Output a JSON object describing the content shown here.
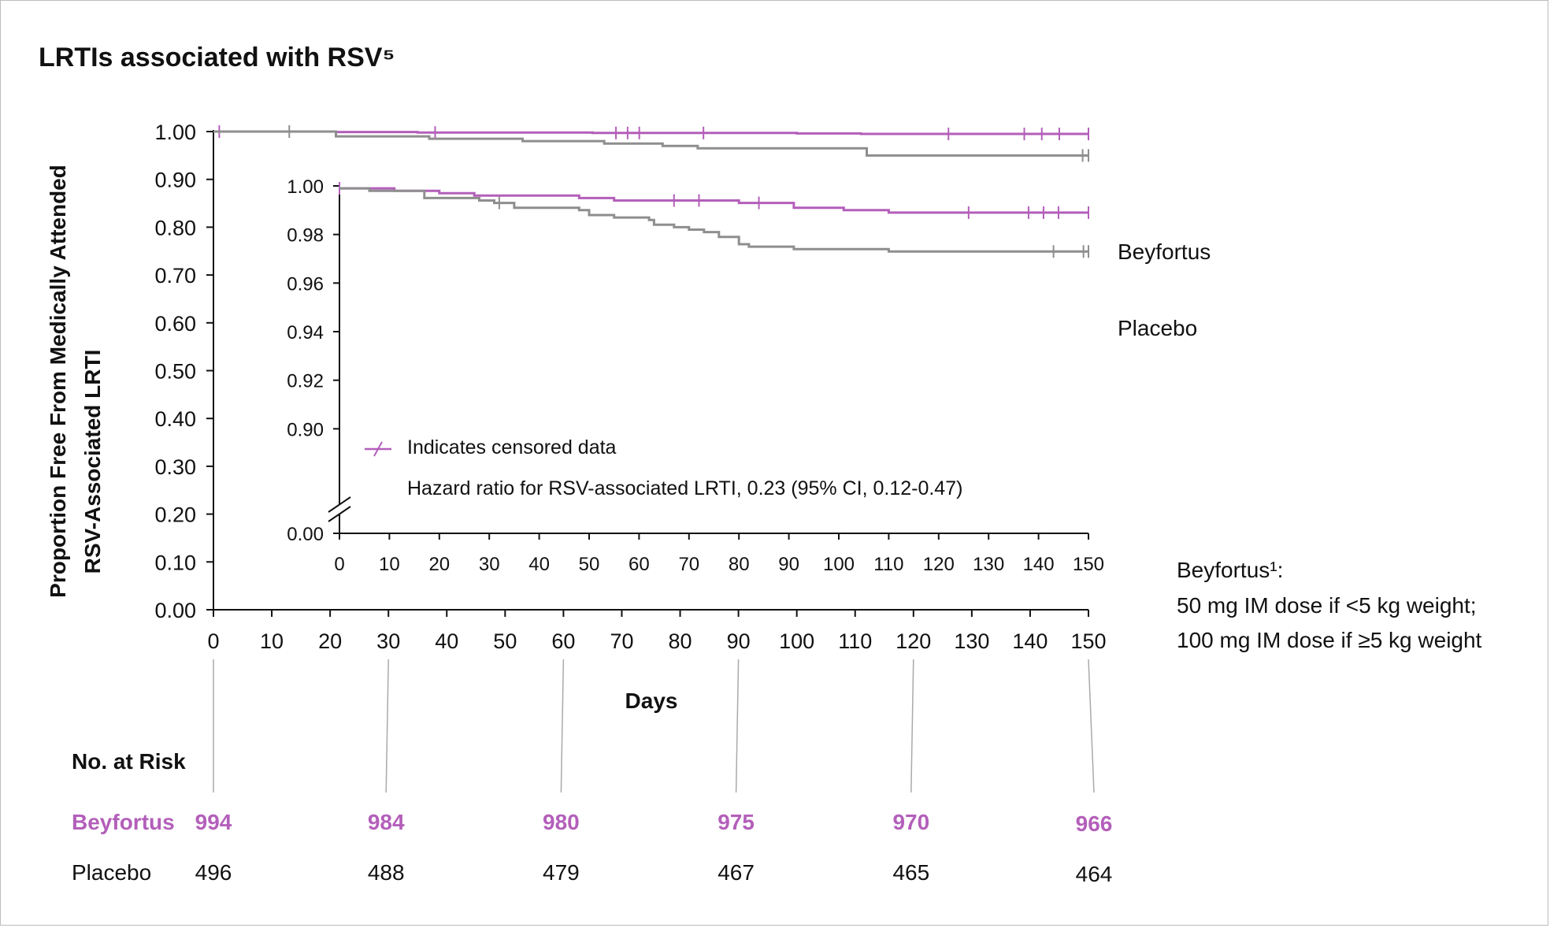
{
  "chart_data": {
    "type": "line",
    "title": "LRTIs associated with RSV⁵",
    "ylabel_line1": "Proportion Free From Medically Attended",
    "ylabel_line2": "RSV-Associated LRTI",
    "xlabel": "Days",
    "colors": {
      "beyfortus": "#b35fba",
      "placebo": "#8e8e8e"
    },
    "main": {
      "xlim": [
        0,
        150
      ],
      "ylim": [
        0,
        1
      ],
      "x_ticks": [
        "0",
        "10",
        "20",
        "30",
        "40",
        "50",
        "60",
        "70",
        "80",
        "90",
        "100",
        "110",
        "120",
        "130",
        "140",
        "150"
      ],
      "y_ticks": [
        "0.00",
        "0.10",
        "0.20",
        "0.30",
        "0.40",
        "0.50",
        "0.60",
        "0.70",
        "0.80",
        "0.90",
        "1.00"
      ],
      "series": [
        {
          "name": "Beyfortus",
          "color_key": "beyfortus",
          "steps": [
            [
              0,
              1.0
            ],
            [
              21,
              0.999
            ],
            [
              35,
              0.998
            ],
            [
              65,
              0.997
            ],
            [
              100,
              0.996
            ],
            [
              111,
              0.995
            ],
            [
              150,
              0.995
            ]
          ],
          "censor_x": [
            1,
            38,
            69,
            71,
            73,
            84,
            126,
            139,
            142,
            145,
            150
          ]
        },
        {
          "name": "Placebo",
          "color_key": "placebo",
          "steps": [
            [
              0,
              1.0
            ],
            [
              21,
              0.99
            ],
            [
              37,
              0.985
            ],
            [
              53,
              0.98
            ],
            [
              67,
              0.975
            ],
            [
              77,
              0.97
            ],
            [
              83,
              0.965
            ],
            [
              112,
              0.95
            ],
            [
              150,
              0.95
            ]
          ],
          "censor_x": [
            13,
            149,
            150
          ]
        }
      ]
    },
    "inset": {
      "xlim": [
        0,
        150
      ],
      "ylim": [
        0.88,
        1.0
      ],
      "x_ticks": [
        "0",
        "10",
        "20",
        "30",
        "40",
        "50",
        "60",
        "70",
        "80",
        "90",
        "100",
        "110",
        "120",
        "130",
        "140",
        "150"
      ],
      "y_ticks": [
        "0.90",
        "0.92",
        "0.94",
        "0.96",
        "0.98",
        "1.00"
      ],
      "y_zero_label": "0.00",
      "series": [
        {
          "name": "Beyfortus",
          "color_key": "beyfortus",
          "steps": [
            [
              0,
              0.999
            ],
            [
              11,
              0.998
            ],
            [
              20,
              0.997
            ],
            [
              27,
              0.996
            ],
            [
              48,
              0.995
            ],
            [
              55,
              0.994
            ],
            [
              80,
              0.993
            ],
            [
              91,
              0.991
            ],
            [
              101,
              0.99
            ],
            [
              110,
              0.989
            ],
            [
              150,
              0.989
            ]
          ],
          "censor_x": [
            0,
            67,
            72,
            84,
            126,
            138,
            141,
            144,
            150
          ]
        },
        {
          "name": "Placebo",
          "color_key": "placebo",
          "steps": [
            [
              0,
              0.999
            ],
            [
              6,
              0.998
            ],
            [
              17,
              0.995
            ],
            [
              28,
              0.994
            ],
            [
              31,
              0.993
            ],
            [
              35,
              0.991
            ],
            [
              48,
              0.99
            ],
            [
              50,
              0.988
            ],
            [
              55,
              0.987
            ],
            [
              62,
              0.986
            ],
            [
              63,
              0.984
            ],
            [
              67,
              0.983
            ],
            [
              70,
              0.982
            ],
            [
              73,
              0.981
            ],
            [
              76,
              0.979
            ],
            [
              80,
              0.976
            ],
            [
              82,
              0.975
            ],
            [
              91,
              0.974
            ],
            [
              110,
              0.973
            ],
            [
              150,
              0.973
            ]
          ],
          "censor_x": [
            32,
            143,
            149,
            150
          ]
        }
      ]
    },
    "annotations": {
      "beyfortus_label": "Beyfortus",
      "placebo_label": "Placebo",
      "censored_legend": "Indicates censored data",
      "hazard_ratio": "Hazard ratio for RSV-associated LRTI, 0.23 (95% CI, 0.12-0.47)",
      "dose_line1": "Beyfortus¹:",
      "dose_line2": "50 mg IM dose if <5 kg weight;",
      "dose_line3": "100 mg IM dose if ≥5 kg weight"
    },
    "risk_table": {
      "heading": "No. at Risk",
      "days": [
        0,
        30,
        60,
        90,
        120,
        150
      ],
      "rows": [
        {
          "label": "Beyfortus",
          "color_key": "beyfortus",
          "values": [
            "994",
            "984",
            "980",
            "975",
            "970",
            "966"
          ]
        },
        {
          "label": "Placebo",
          "color_key": "placebo",
          "values": [
            "496",
            "488",
            "479",
            "467",
            "465",
            "464"
          ]
        }
      ]
    }
  }
}
